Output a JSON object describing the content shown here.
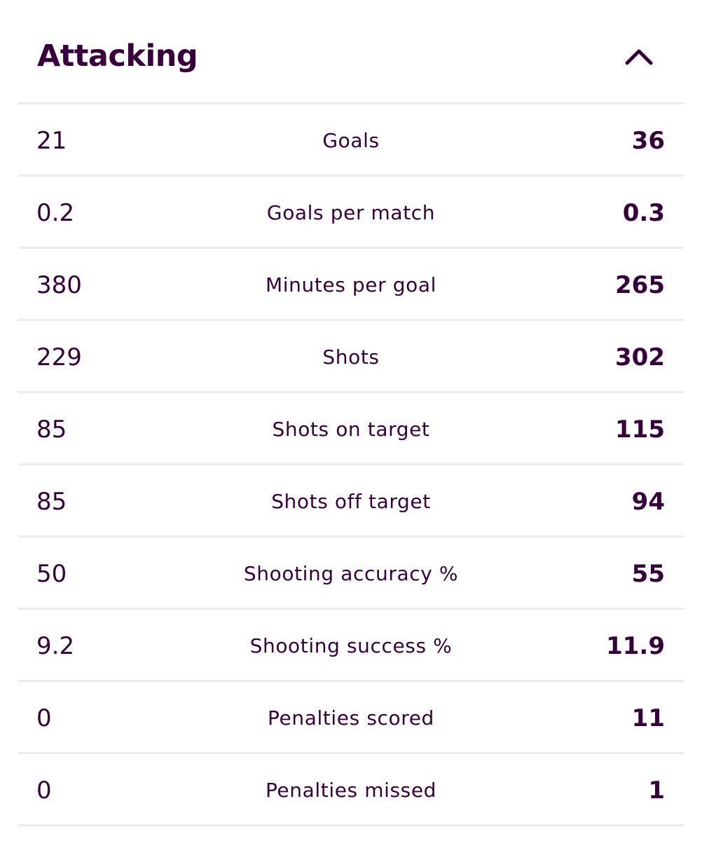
{
  "section": {
    "title": "Attacking",
    "toggle_icon": "chevron-up-icon"
  },
  "colors": {
    "text": "#37003c",
    "divider": "#ececec",
    "background": "#ffffff"
  },
  "rows": [
    {
      "left": "21",
      "label": "Goals",
      "right": "36"
    },
    {
      "left": "0.2",
      "label": "Goals per match",
      "right": "0.3"
    },
    {
      "left": "380",
      "label": "Minutes per goal",
      "right": "265"
    },
    {
      "left": "229",
      "label": "Shots",
      "right": "302"
    },
    {
      "left": "85",
      "label": "Shots on target",
      "right": "115"
    },
    {
      "left": "85",
      "label": "Shots off target",
      "right": "94"
    },
    {
      "left": "50",
      "label": "Shooting accuracy %",
      "right": "55"
    },
    {
      "left": "9.2",
      "label": "Shooting success %",
      "right": "11.9"
    },
    {
      "left": "0",
      "label": "Penalties scored",
      "right": "11"
    },
    {
      "left": "0",
      "label": "Penalties missed",
      "right": "1"
    }
  ]
}
